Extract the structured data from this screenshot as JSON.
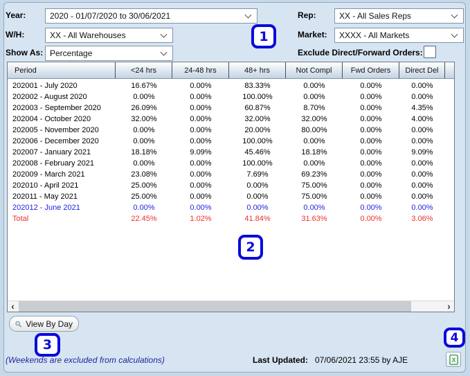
{
  "filters": {
    "year_label": "Year:",
    "year_value": "2020 - 01/07/2020 to 30/06/2021",
    "wh_label": "W/H:",
    "wh_value": "XX - All Warehouses",
    "show_as_label": "Show As:",
    "show_as_value": "Percentage",
    "rep_label": "Rep:",
    "rep_value": "XX - All Sales Reps",
    "market_label": "Market:",
    "market_value": "XXXX - All Markets",
    "exclude_label": "Exclude Direct/Forward Orders:",
    "exclude_checked": false
  },
  "table": {
    "columns": [
      "Period",
      "<24 hrs",
      "24-48 hrs",
      "48+ hrs",
      "Not Compl",
      "Fwd Orders",
      "Direct Del"
    ],
    "rows": [
      {
        "period": "202001 - July 2020",
        "values": [
          "16.67%",
          "0.00%",
          "83.33%",
          "0.00%",
          "0.00%",
          "0.00%"
        ],
        "style": "normal"
      },
      {
        "period": "202002 - August 2020",
        "values": [
          "0.00%",
          "0.00%",
          "100.00%",
          "0.00%",
          "0.00%",
          "0.00%"
        ],
        "style": "normal"
      },
      {
        "period": "202003 - September 2020",
        "values": [
          "26.09%",
          "0.00%",
          "60.87%",
          "8.70%",
          "0.00%",
          "4.35%"
        ],
        "style": "normal"
      },
      {
        "period": "202004 - October 2020",
        "values": [
          "32.00%",
          "0.00%",
          "32.00%",
          "32.00%",
          "0.00%",
          "4.00%"
        ],
        "style": "normal"
      },
      {
        "period": "202005 - November 2020",
        "values": [
          "0.00%",
          "0.00%",
          "20.00%",
          "80.00%",
          "0.00%",
          "0.00%"
        ],
        "style": "normal"
      },
      {
        "period": "202006 - December 2020",
        "values": [
          "0.00%",
          "0.00%",
          "100.00%",
          "0.00%",
          "0.00%",
          "0.00%"
        ],
        "style": "normal"
      },
      {
        "period": "202007 - January 2021",
        "values": [
          "18.18%",
          "9.09%",
          "45.46%",
          "18.18%",
          "0.00%",
          "9.09%"
        ],
        "style": "normal"
      },
      {
        "period": "202008 - February 2021",
        "values": [
          "0.00%",
          "0.00%",
          "100.00%",
          "0.00%",
          "0.00%",
          "0.00%"
        ],
        "style": "normal"
      },
      {
        "period": "202009 - March 2021",
        "values": [
          "23.08%",
          "0.00%",
          "7.69%",
          "69.23%",
          "0.00%",
          "0.00%"
        ],
        "style": "normal"
      },
      {
        "period": "202010 - April 2021",
        "values": [
          "25.00%",
          "0.00%",
          "0.00%",
          "75.00%",
          "0.00%",
          "0.00%"
        ],
        "style": "normal"
      },
      {
        "period": "202011 - May 2021",
        "values": [
          "25.00%",
          "0.00%",
          "0.00%",
          "75.00%",
          "0.00%",
          "0.00%"
        ],
        "style": "normal"
      },
      {
        "period": "202012 - June 2021",
        "values": [
          "0.00%",
          "0.00%",
          "0.00%",
          "0.00%",
          "0.00%",
          "0.00%"
        ],
        "style": "current"
      },
      {
        "period": "Total",
        "values": [
          "22.45%",
          "1.02%",
          "41.84%",
          "31.63%",
          "0.00%",
          "3.06%"
        ],
        "style": "total"
      }
    ]
  },
  "scrollbar": {
    "left_arrow": "‹",
    "right_arrow": "›"
  },
  "footer": {
    "view_by_day_label": "View By Day",
    "weekends_note": "(Weekends are excluded from calculations)",
    "last_updated_label": "Last Updated:",
    "last_updated_value": "07/06/2021 23:55 by AJE"
  },
  "annotations": {
    "one": "1",
    "two": "2",
    "three": "3",
    "four": "4"
  },
  "colors": {
    "annotation_blue": "#0a0ada",
    "total_row_red": "#ee2f2f",
    "current_period_blue": "#1f1fe0",
    "note_navy": "#23239b",
    "excel_green": "#3f9e4d",
    "panel_background": "#d7e5f3"
  }
}
